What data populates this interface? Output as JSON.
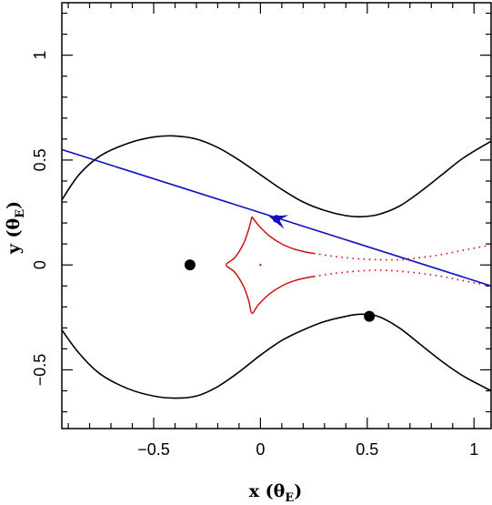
{
  "chart_data": {
    "type": "scatter",
    "xlabel": "x (θE)",
    "ylabel": "y (θE)",
    "xlabel_parts": {
      "main": "x (θ",
      "sub": "E",
      "close": ")"
    },
    "ylabel_parts": {
      "main": "y (θ",
      "sub": "E",
      "close": ")"
    },
    "xlim": [
      -0.93,
      1.08
    ],
    "ylim": [
      -0.78,
      1.25
    ],
    "x_ticks": [
      {
        "value": -0.5,
        "label": "−0.5"
      },
      {
        "value": 0,
        "label": "0"
      },
      {
        "value": 0.5,
        "label": "0.5"
      },
      {
        "value": 1,
        "label": "1"
      }
    ],
    "y_ticks": [
      {
        "value": -0.5,
        "label": "−0.5"
      },
      {
        "value": 0,
        "label": "0"
      },
      {
        "value": 0.5,
        "label": "0.5"
      },
      {
        "value": 1,
        "label": "1"
      }
    ],
    "grid": false,
    "colors": {
      "critical_curve": "#000000",
      "caustic": "#d01010",
      "trajectory": "#1010c0",
      "lens": "#000000"
    },
    "lenses": [
      {
        "x": -0.33,
        "y": 0.0
      },
      {
        "x": 0.51,
        "y": -0.245
      }
    ],
    "center_of_mass": {
      "x": 0.0,
      "y": 0.0
    },
    "critical_curve_upper": [
      {
        "x": -0.93,
        "y": 0.31
      },
      {
        "x": -0.85,
        "y": 0.43
      },
      {
        "x": -0.75,
        "y": 0.52
      },
      {
        "x": -0.62,
        "y": 0.58
      },
      {
        "x": -0.5,
        "y": 0.61
      },
      {
        "x": -0.4,
        "y": 0.615
      },
      {
        "x": -0.3,
        "y": 0.6
      },
      {
        "x": -0.2,
        "y": 0.56
      },
      {
        "x": -0.1,
        "y": 0.5
      },
      {
        "x": 0.0,
        "y": 0.43
      },
      {
        "x": 0.1,
        "y": 0.36
      },
      {
        "x": 0.2,
        "y": 0.3
      },
      {
        "x": 0.3,
        "y": 0.26
      },
      {
        "x": 0.4,
        "y": 0.235
      },
      {
        "x": 0.47,
        "y": 0.23
      },
      {
        "x": 0.55,
        "y": 0.24
      },
      {
        "x": 0.65,
        "y": 0.28
      },
      {
        "x": 0.75,
        "y": 0.35
      },
      {
        "x": 0.85,
        "y": 0.43
      },
      {
        "x": 0.95,
        "y": 0.51
      },
      {
        "x": 1.08,
        "y": 0.59
      }
    ],
    "critical_curve_lower": [
      {
        "x": -0.93,
        "y": -0.31
      },
      {
        "x": -0.85,
        "y": -0.42
      },
      {
        "x": -0.75,
        "y": -0.52
      },
      {
        "x": -0.62,
        "y": -0.59
      },
      {
        "x": -0.5,
        "y": -0.625
      },
      {
        "x": -0.4,
        "y": -0.635
      },
      {
        "x": -0.3,
        "y": -0.625
      },
      {
        "x": -0.2,
        "y": -0.58
      },
      {
        "x": -0.1,
        "y": -0.51
      },
      {
        "x": 0.0,
        "y": -0.43
      },
      {
        "x": 0.1,
        "y": -0.36
      },
      {
        "x": 0.2,
        "y": -0.31
      },
      {
        "x": 0.3,
        "y": -0.27
      },
      {
        "x": 0.4,
        "y": -0.245
      },
      {
        "x": 0.47,
        "y": -0.235
      },
      {
        "x": 0.55,
        "y": -0.245
      },
      {
        "x": 0.65,
        "y": -0.3
      },
      {
        "x": 0.75,
        "y": -0.38
      },
      {
        "x": 0.85,
        "y": -0.46
      },
      {
        "x": 0.95,
        "y": -0.53
      },
      {
        "x": 1.08,
        "y": -0.6
      }
    ],
    "caustic_outline": [
      {
        "x": -0.04,
        "y": 0.23
      },
      {
        "x": -0.055,
        "y": 0.17
      },
      {
        "x": -0.08,
        "y": 0.1
      },
      {
        "x": -0.12,
        "y": 0.035
      },
      {
        "x": -0.16,
        "y": 0.0
      },
      {
        "x": -0.12,
        "y": -0.035
      },
      {
        "x": -0.08,
        "y": -0.1
      },
      {
        "x": -0.055,
        "y": -0.17
      },
      {
        "x": -0.04,
        "y": -0.23
      },
      {
        "x": -0.01,
        "y": -0.19
      },
      {
        "x": 0.04,
        "y": -0.14
      },
      {
        "x": 0.1,
        "y": -0.1
      },
      {
        "x": 0.16,
        "y": -0.075
      },
      {
        "x": 0.22,
        "y": -0.06
      },
      {
        "x": 0.25,
        "y": -0.055
      }
    ],
    "caustic_outline_top": [
      {
        "x": -0.04,
        "y": 0.23
      },
      {
        "x": -0.01,
        "y": 0.19
      },
      {
        "x": 0.04,
        "y": 0.14
      },
      {
        "x": 0.1,
        "y": 0.1
      },
      {
        "x": 0.16,
        "y": 0.075
      },
      {
        "x": 0.22,
        "y": 0.06
      },
      {
        "x": 0.25,
        "y": 0.055
      }
    ],
    "caustic_dotted_top": [
      {
        "x": 0.25,
        "y": 0.055
      },
      {
        "x": 0.35,
        "y": 0.04
      },
      {
        "x": 0.45,
        "y": 0.03
      },
      {
        "x": 0.55,
        "y": 0.025
      },
      {
        "x": 0.65,
        "y": 0.025
      },
      {
        "x": 0.75,
        "y": 0.035
      },
      {
        "x": 0.85,
        "y": 0.05
      },
      {
        "x": 0.95,
        "y": 0.07
      },
      {
        "x": 1.08,
        "y": 0.095
      }
    ],
    "caustic_dotted_bottom": [
      {
        "x": 0.25,
        "y": -0.055
      },
      {
        "x": 0.35,
        "y": -0.04
      },
      {
        "x": 0.45,
        "y": -0.03
      },
      {
        "x": 0.55,
        "y": -0.025
      },
      {
        "x": 0.65,
        "y": -0.03
      },
      {
        "x": 0.75,
        "y": -0.04
      },
      {
        "x": 0.85,
        "y": -0.055
      },
      {
        "x": 0.95,
        "y": -0.075
      },
      {
        "x": 1.08,
        "y": -0.1
      }
    ],
    "trajectory": [
      {
        "x": -0.93,
        "y": 0.55
      },
      {
        "x": 1.08,
        "y": -0.1
      }
    ],
    "trajectory_arrow": {
      "x": 0.12,
      "y": 0.205,
      "dx": -0.08,
      "dy": 0.026
    },
    "source_marker": {
      "x": 0.075,
      "y": 0.22
    }
  }
}
